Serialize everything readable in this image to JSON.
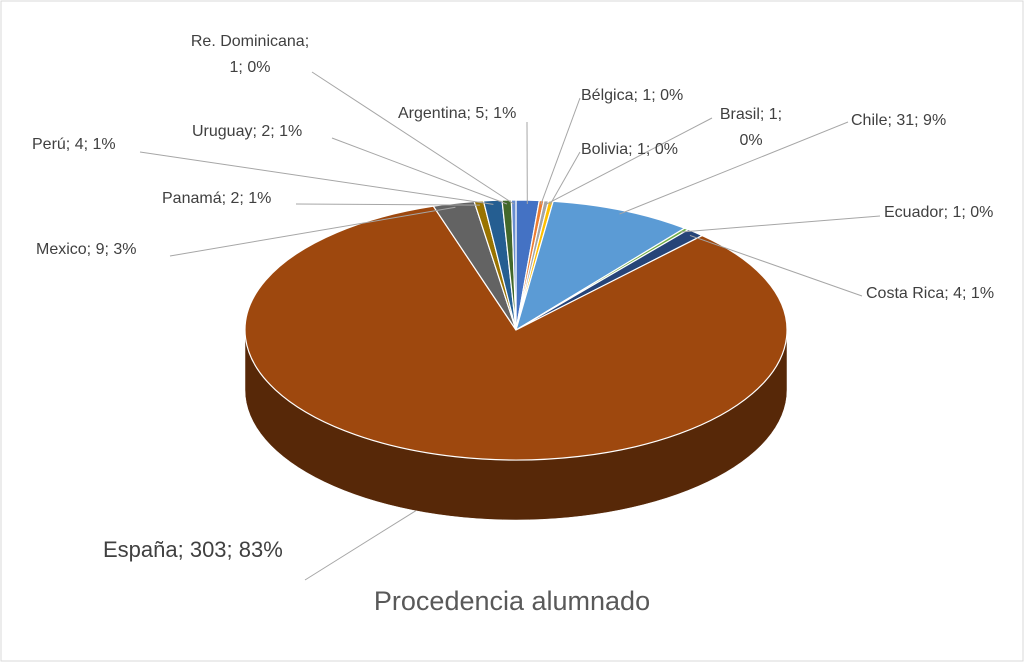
{
  "chart_data": {
    "type": "pie3d",
    "title": "Procedencia alumnado",
    "categories": [
      "Argentina",
      "Bélgica",
      "Brasil",
      "Bolivia",
      "Chile",
      "Ecuador",
      "Costa Rica",
      "España",
      "Mexico",
      "Panamá",
      "Perú",
      "Uruguay",
      "Re. Dominicana"
    ],
    "values": [
      5,
      1,
      1,
      1,
      31,
      1,
      4,
      303,
      9,
      2,
      4,
      2,
      1
    ],
    "value_labels": [
      "Argentina; 5; 1%",
      "Bélgica; 1; 0%",
      "Brasil; 1; 0%",
      "Bolivia; 1; 0%",
      "Chile; 31; 9%",
      "Ecuador; 1; 0%",
      "Costa Rica; 4; 1%",
      "España; 303; 83%",
      "Mexico; 9; 3%",
      "Panamá; 2; 1%",
      "Perú; 4; 1%",
      "Uruguay; 2; 1%",
      "Re. Dominicana; 1; 0%"
    ],
    "colors": [
      "#4472c4",
      "#ed7d31",
      "#a5a5a5",
      "#ffc000",
      "#5b9bd5",
      "#70ad47",
      "#264478",
      "#9e480e",
      "#636363",
      "#997300",
      "#255e91",
      "#43682b",
      "#698ed0"
    ]
  }
}
